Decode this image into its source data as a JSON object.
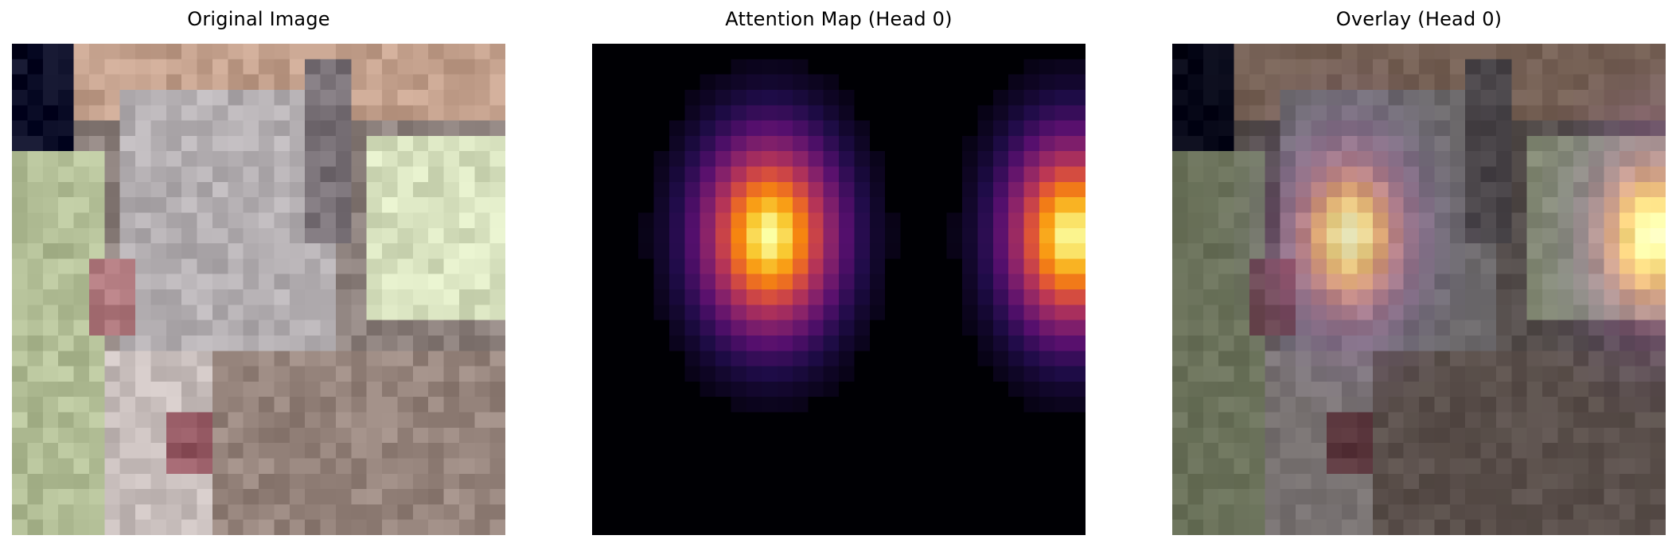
{
  "figure": {
    "panels": [
      {
        "title": "Original Image"
      },
      {
        "title": "Attention Map (Head 0)"
      },
      {
        "title": "Overlay (Head 0)"
      }
    ]
  },
  "attention": {
    "colormap": "inferno",
    "grid": 32,
    "blobs": [
      {
        "center_col": 11.5,
        "center_row": 12.5,
        "sigma_col": 3.2,
        "sigma_row": 4.6
      },
      {
        "center_col": 31.0,
        "center_row": 12.5,
        "sigma_col": 3.0,
        "sigma_row": 4.6
      }
    ]
  }
}
